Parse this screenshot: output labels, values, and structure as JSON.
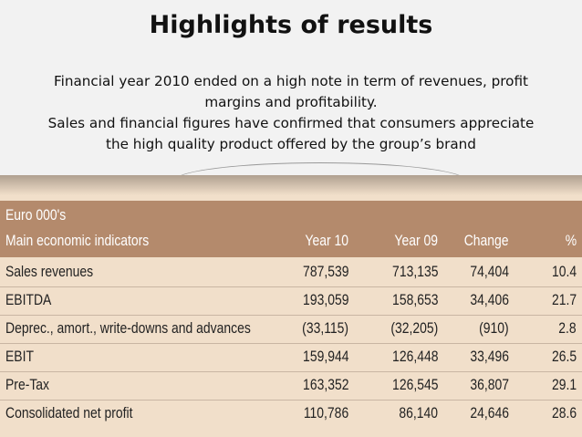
{
  "title": "Highlights of results",
  "subtitle": {
    "lines": [
      "Financial year 2010 ended on a high note in term of revenues, profit",
      "margins and profitability.",
      "Sales and financial figures have confirmed that consumers appreciate",
      "the high quality product offered by the group’s brand"
    ]
  },
  "table": {
    "unit_label": "Euro 000's",
    "columns": [
      "Main economic indicators",
      "Year 10",
      "Year 09",
      "Change",
      "%"
    ],
    "rows": [
      [
        "Sales revenues",
        "787,539",
        "713,135",
        "74,404",
        "10.4"
      ],
      [
        "EBITDA",
        "193,059",
        "158,653",
        "34,406",
        "21.7"
      ],
      [
        "Deprec., amort., write-downs and advances",
        "(33,115)",
        "(32,205)",
        "(910)",
        "2.8"
      ],
      [
        "EBIT",
        "159,944",
        "126,448",
        "33,496",
        "26.5"
      ],
      [
        "Pre-Tax",
        "163,352",
        "126,545",
        "36,807",
        "29.1"
      ],
      [
        "Consolidated net profit",
        "110,786",
        "86,140",
        "24,646",
        "28.6"
      ]
    ]
  },
  "colors": {
    "header": "#b48a6c",
    "table_bg": "#f1dfca",
    "background": "#f2f2f2"
  }
}
